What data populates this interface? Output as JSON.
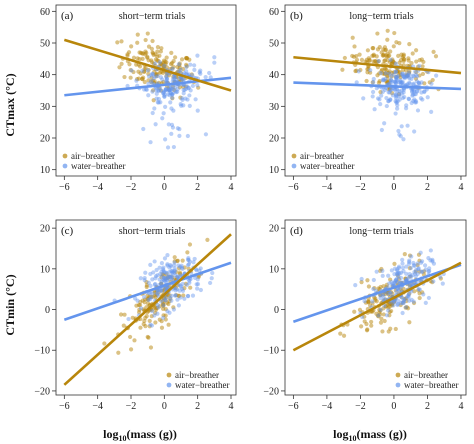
{
  "figure": {
    "ylabel_top": "CTmax (°C)",
    "ylabel_bottom": "CTmin (°C)",
    "xlabel_prefix": "log",
    "xlabel_sub": "10",
    "xlabel_suffix": "(mass (g))"
  },
  "legend": {
    "air": "air−breather",
    "water": "water−breather"
  },
  "colors": {
    "air": "#b8860b",
    "water": "#6495ed"
  },
  "chart_data": [
    {
      "id": "a",
      "type": "scatter",
      "letter": "(a)",
      "title": "short−term trials",
      "xlim": [
        -6.5,
        4.3
      ],
      "ylim": [
        8,
        62
      ],
      "xticks": [
        -6,
        -4,
        -2,
        0,
        2,
        4
      ],
      "yticks": [
        10,
        20,
        30,
        40,
        50,
        60
      ],
      "lines": {
        "air": [
          [
            -6,
            51
          ],
          [
            4,
            35
          ]
        ],
        "water": [
          [
            -6,
            33.5
          ],
          [
            4,
            39
          ]
        ]
      },
      "legend_position": "bottom-left"
    },
    {
      "id": "b",
      "type": "scatter",
      "letter": "(b)",
      "title": "long−term trials",
      "xlim": [
        -6.5,
        4.3
      ],
      "ylim": [
        8,
        62
      ],
      "xticks": [
        -6,
        -4,
        -2,
        0,
        2,
        4
      ],
      "yticks": [
        10,
        20,
        30,
        40,
        50,
        60
      ],
      "lines": {
        "air": [
          [
            -6,
            45.5
          ],
          [
            4,
            40.5
          ]
        ],
        "water": [
          [
            -6,
            37.5
          ],
          [
            4,
            35.5
          ]
        ]
      },
      "legend_position": "bottom-left"
    },
    {
      "id": "c",
      "type": "scatter",
      "letter": "(c)",
      "title": "short−term trials",
      "xlim": [
        -6.5,
        4.3
      ],
      "ylim": [
        -21,
        22
      ],
      "xticks": [
        -6,
        -4,
        -2,
        0,
        2,
        4
      ],
      "yticks": [
        -20,
        -10,
        0,
        10,
        20
      ],
      "lines": {
        "air": [
          [
            -6,
            -18.5
          ],
          [
            4,
            18.5
          ]
        ],
        "water": [
          [
            -6,
            -2.5
          ],
          [
            4,
            11.5
          ]
        ]
      },
      "legend_position": "bottom-right"
    },
    {
      "id": "d",
      "type": "scatter",
      "letter": "(d)",
      "title": "long−term trials",
      "xlim": [
        -6.5,
        4.3
      ],
      "ylim": [
        -21,
        22
      ],
      "xticks": [
        -6,
        -4,
        -2,
        0,
        2,
        4
      ],
      "yticks": [
        -20,
        -10,
        0,
        10,
        20
      ],
      "lines": {
        "air": [
          [
            -6,
            -10
          ],
          [
            4,
            11.5
          ]
        ],
        "water": [
          [
            -6,
            -3
          ],
          [
            4,
            11
          ]
        ]
      },
      "legend_position": "bottom-right"
    }
  ]
}
